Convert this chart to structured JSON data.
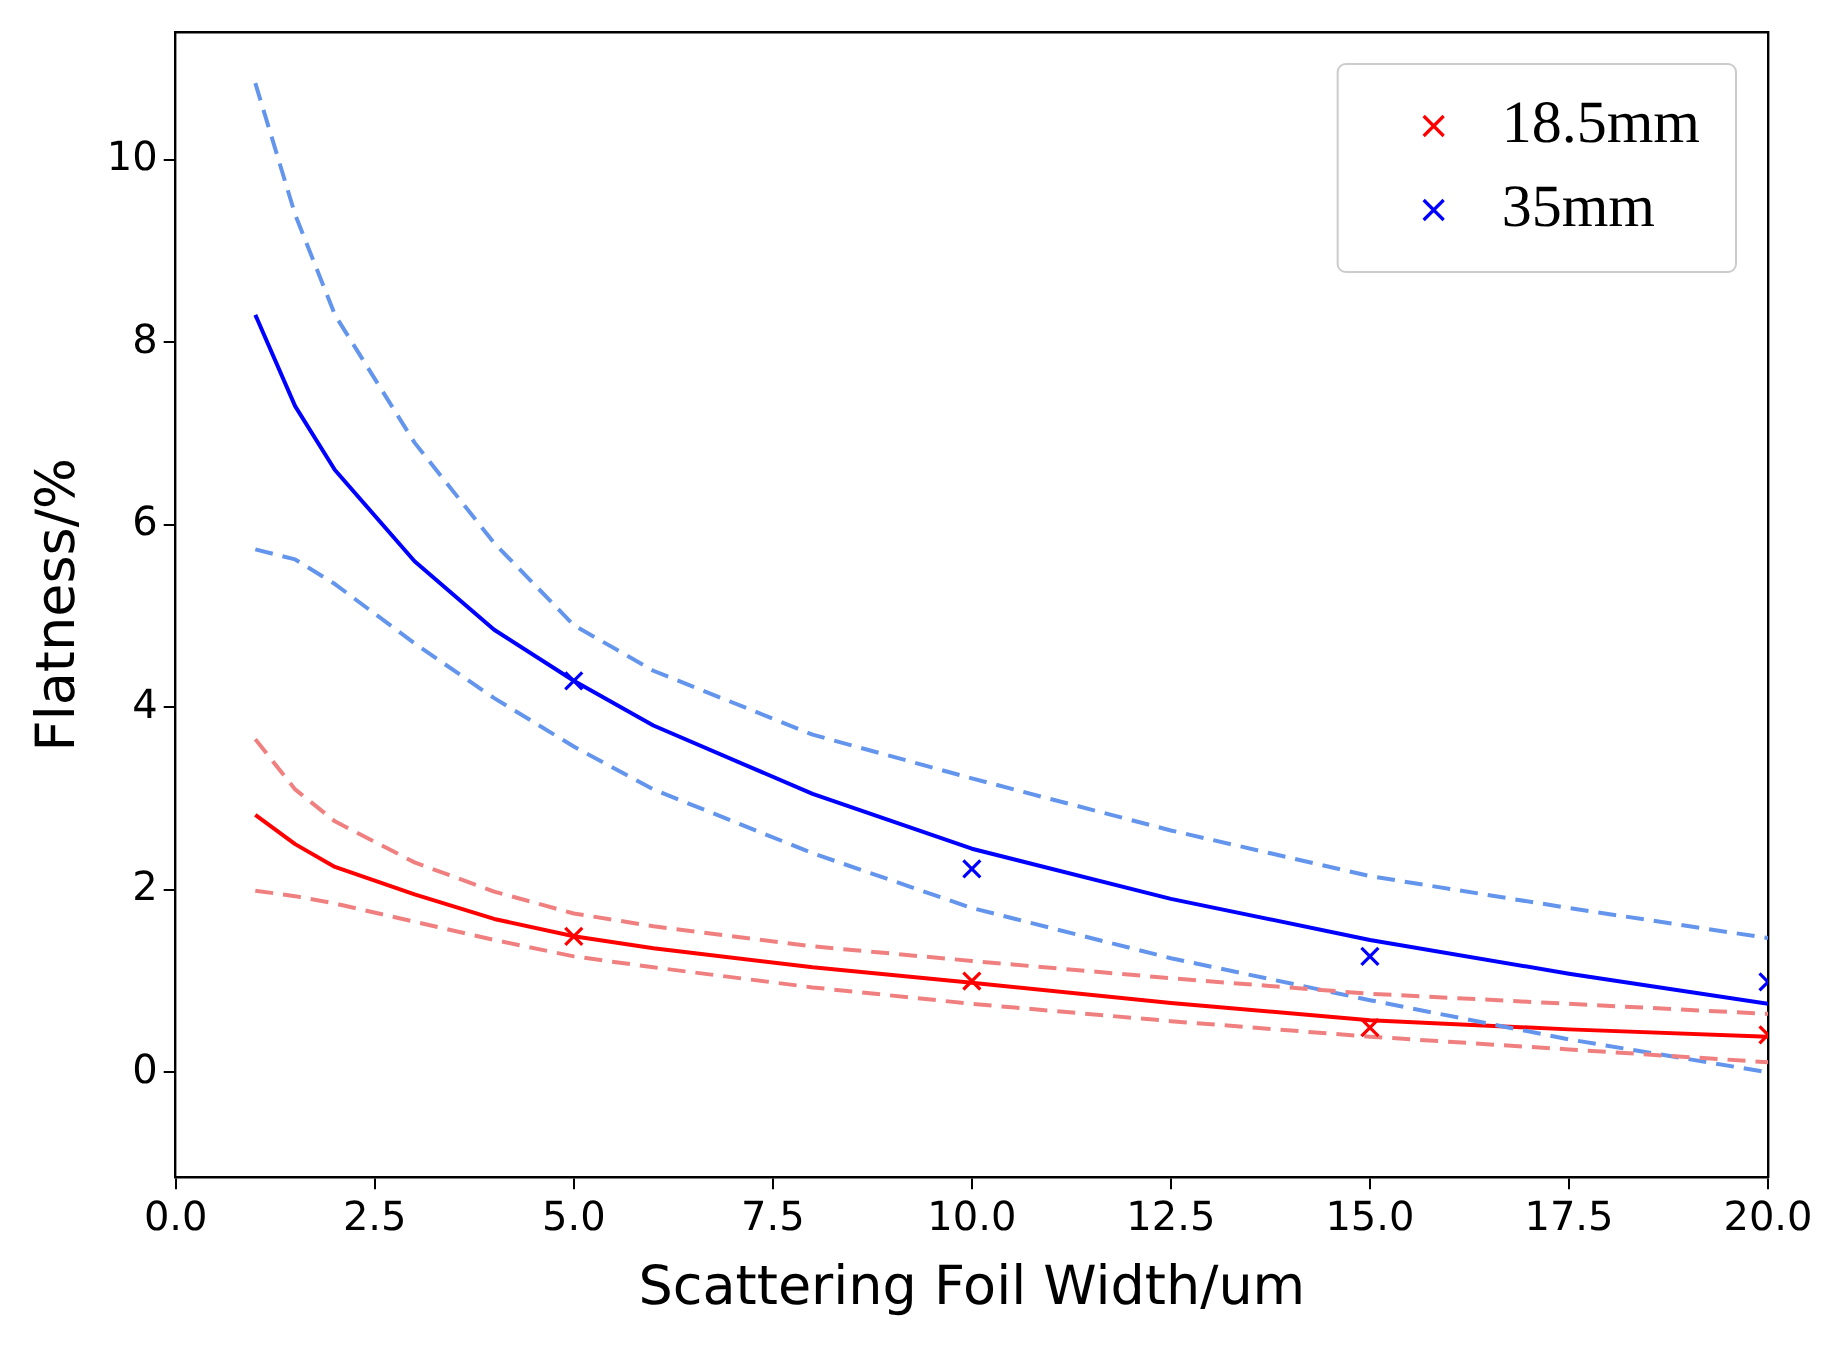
{
  "chart_data": {
    "type": "scatter",
    "xlabel": "Scattering Foil Width/um",
    "ylabel": "Flatness/%",
    "xlim": [
      0,
      20
    ],
    "ylim": [
      -1.15,
      11.4
    ],
    "xticks": [
      {
        "value": 0,
        "label": "0.0"
      },
      {
        "value": 2.5,
        "label": "2.5"
      },
      {
        "value": 5,
        "label": "5.0"
      },
      {
        "value": 7.5,
        "label": "7.5"
      },
      {
        "value": 10,
        "label": "10.0"
      },
      {
        "value": 12.5,
        "label": "12.5"
      },
      {
        "value": 15,
        "label": "15.0"
      },
      {
        "value": 17.5,
        "label": "17.5"
      },
      {
        "value": 20,
        "label": "20.0"
      }
    ],
    "yticks": [
      0,
      2,
      4,
      6,
      8,
      10
    ],
    "grid": false,
    "legend": "top right",
    "series": [
      {
        "type": "line",
        "color": "#f08080",
        "line_style": "dashed",
        "marker": "none",
        "x": [
          1,
          1.5,
          2,
          3,
          4,
          5,
          6,
          8,
          10,
          12.5,
          15,
          17.5,
          20
        ],
        "values": [
          3.65,
          3.1,
          2.75,
          2.3,
          1.98,
          1.74,
          1.6,
          1.38,
          1.22,
          1.03,
          0.86,
          0.75,
          0.64
        ]
      },
      {
        "type": "line",
        "color": "#f08080",
        "line_style": "dashed",
        "marker": "none",
        "x": [
          1,
          1.5,
          2,
          3,
          4,
          5,
          6,
          8,
          10,
          12.5,
          15,
          17.5,
          20
        ],
        "values": [
          1.99,
          1.93,
          1.85,
          1.65,
          1.45,
          1.27,
          1.15,
          0.93,
          0.75,
          0.56,
          0.39,
          0.25,
          0.11
        ]
      },
      {
        "type": "line",
        "color": "#6495ed",
        "line_style": "dashed",
        "marker": "none",
        "x": [
          1,
          1.5,
          2,
          3,
          4,
          5,
          6,
          8,
          10,
          12.5,
          15,
          17.5,
          20
        ],
        "values": [
          10.84,
          9.4,
          8.3,
          6.9,
          5.8,
          4.9,
          4.4,
          3.7,
          3.22,
          2.65,
          2.15,
          1.8,
          1.47
        ]
      },
      {
        "type": "line",
        "color": "#6495ed",
        "line_style": "dashed",
        "marker": "none",
        "x": [
          1,
          1.5,
          2,
          3,
          4,
          5,
          6,
          8,
          10,
          12.5,
          15,
          17.5,
          20
        ],
        "values": [
          5.73,
          5.62,
          5.35,
          4.7,
          4.1,
          3.57,
          3.1,
          2.4,
          1.8,
          1.25,
          0.79,
          0.36,
          0.0
        ]
      },
      {
        "type": "line",
        "color": "#ff0000",
        "line_style": "solid",
        "marker": "none",
        "x": [
          1,
          1.5,
          2,
          3,
          4,
          5,
          6,
          8,
          10,
          12.5,
          15,
          17.5,
          20
        ],
        "values": [
          2.82,
          2.5,
          2.25,
          1.95,
          1.68,
          1.49,
          1.36,
          1.15,
          0.98,
          0.76,
          0.57,
          0.47,
          0.39
        ]
      },
      {
        "type": "line",
        "color": "#0000ff",
        "line_style": "solid",
        "marker": "none",
        "x": [
          1,
          1.5,
          2,
          3,
          4,
          5,
          6,
          8,
          10,
          12.5,
          15,
          17.5,
          20
        ],
        "values": [
          8.3,
          7.3,
          6.6,
          5.6,
          4.85,
          4.29,
          3.8,
          3.05,
          2.45,
          1.9,
          1.45,
          1.08,
          0.75
        ]
      },
      {
        "type": "scatter",
        "name": "18.5mm",
        "color": "#ff0000",
        "marker": "cross",
        "x": [
          5,
          10,
          15,
          20
        ],
        "values": [
          1.49,
          1.0,
          0.49,
          0.41
        ]
      },
      {
        "type": "scatter",
        "name": "35mm",
        "color": "#0000ff",
        "marker": "cross",
        "x": [
          5,
          10,
          15,
          20
        ],
        "values": [
          4.29,
          2.23,
          1.27,
          0.99
        ]
      }
    ]
  }
}
